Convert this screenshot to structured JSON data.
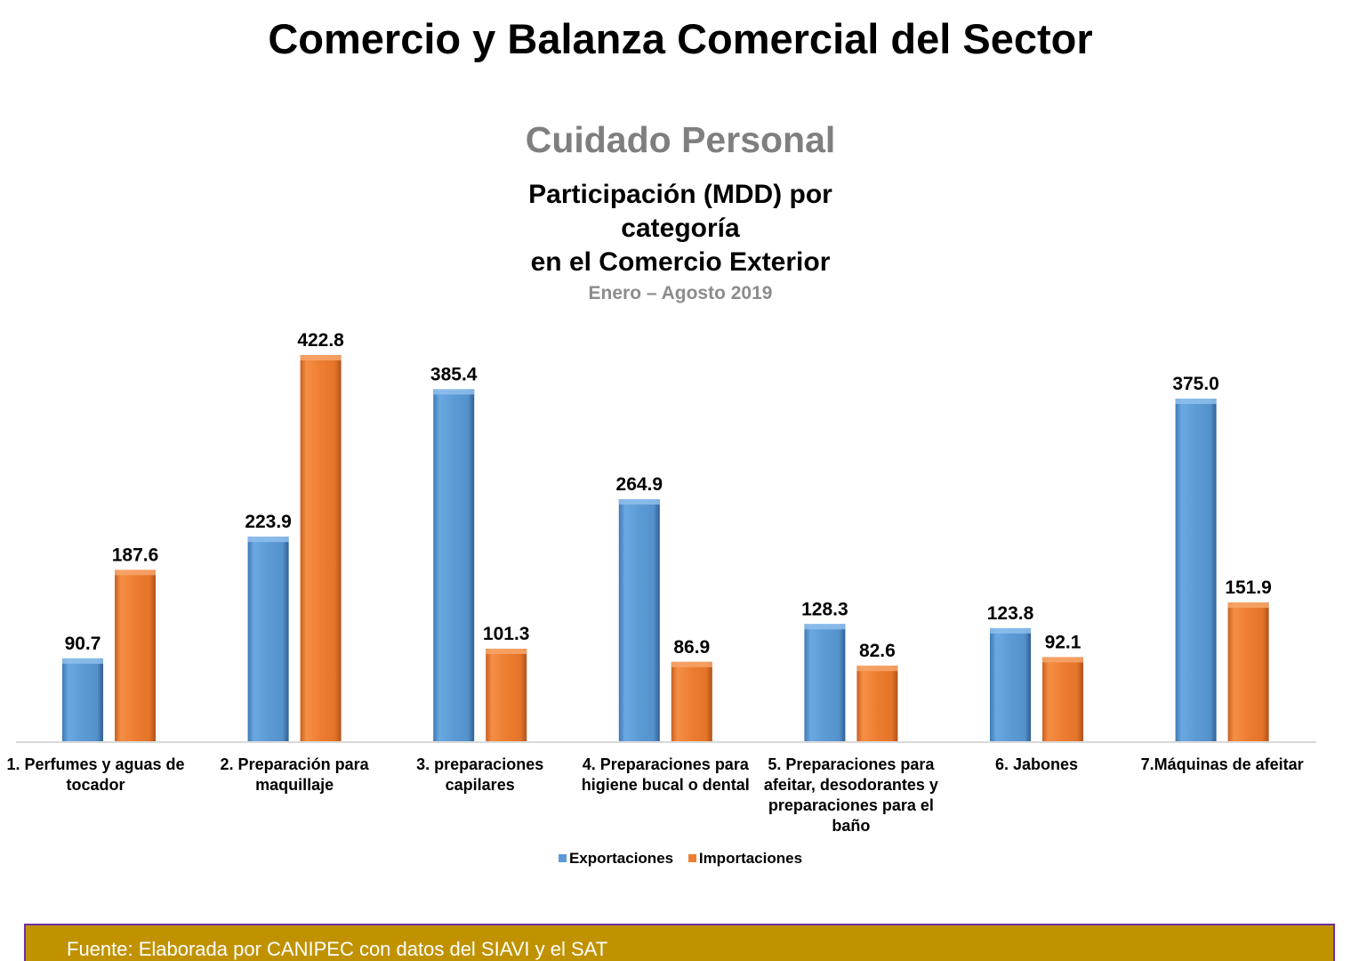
{
  "header": {
    "title": "Comercio y Balanza Comercial del Sector",
    "subtitle": "Cuidado Personal"
  },
  "chart": {
    "title_lines": [
      "Participación (MDD) por",
      "categoría",
      "en el Comercio Exterior"
    ],
    "period": "Enero – Agosto 2019"
  },
  "chart_data": {
    "type": "bar",
    "title": "Participación (MDD) por categoría en el Comercio Exterior",
    "subtitle": "Enero – Agosto 2019",
    "categories": [
      "1. Perfumes y aguas de tocador",
      "2. Preparación para maquillaje",
      "3. preparaciones capilares",
      "4. Preparaciones para higiene bucal o dental",
      "5. Preparaciones para afeitar, desodorantes y preparaciones para el baño",
      "6. Jabones",
      "7.Máquinas de afeitar"
    ],
    "series": [
      {
        "name": "Exportaciones",
        "values": [
          90.7,
          223.9,
          385.4,
          264.9,
          128.3,
          123.8,
          375.0
        ],
        "color": "#5b9bd5"
      },
      {
        "name": "Importaciones",
        "values": [
          187.6,
          422.8,
          101.3,
          86.9,
          82.6,
          92.1,
          151.9
        ],
        "color": "#ed7d31"
      }
    ],
    "value_labels": {
      "Exportaciones": [
        "90.7",
        "223.9",
        "385.4",
        "264.9",
        "128.3",
        "123.8",
        "375.0"
      ],
      "Importaciones": [
        "187.6",
        "422.8",
        "101.3",
        "86.9",
        "82.6",
        "92.1",
        "151.9"
      ]
    },
    "ylim": [
      0,
      422.8
    ],
    "grid": false,
    "legend_position": "bottom",
    "data_labels": true
  },
  "footer": {
    "source": "Fuente: Elaborada por CANIPEC con datos del SIAVI y el SAT"
  },
  "colors": {
    "export": "#5b9bd5",
    "import": "#ed7d31",
    "footer_bg": "#c09200",
    "footer_border": "#7030a0"
  }
}
